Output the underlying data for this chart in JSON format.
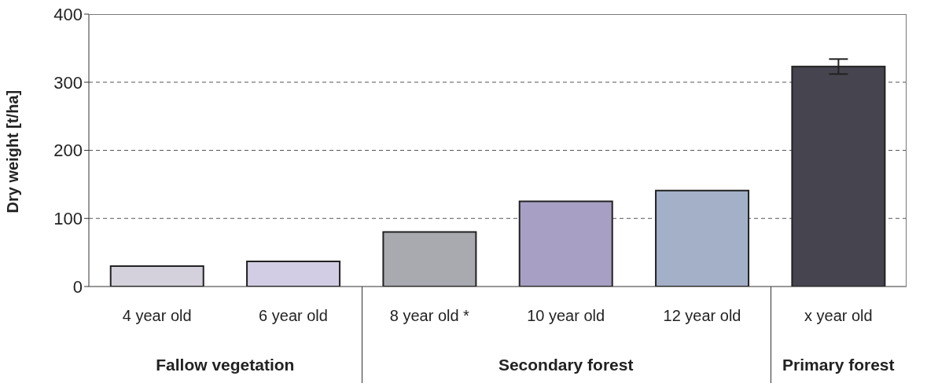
{
  "chart_data": {
    "type": "bar",
    "ylabel": "Dry weight [t/ha]",
    "categories": [
      "4 year old",
      "6 year old",
      "8 year old *",
      "10 year old",
      "12 year old",
      "x year old"
    ],
    "values": [
      30,
      37,
      80,
      125,
      141,
      323
    ],
    "colors": [
      "#d4d0dc",
      "#d2cce4",
      "#a8aab0",
      "#a8a0c4",
      "#a4b0c8",
      "#46444e"
    ],
    "errors": [
      null,
      null,
      null,
      null,
      null,
      11
    ],
    "ylim": [
      0,
      400
    ],
    "yticks": [
      0,
      100,
      200,
      300,
      400
    ],
    "grid": "y",
    "annotations": [
      "Fallow vegetation",
      "Secondary forest",
      "Primary forest"
    ]
  }
}
